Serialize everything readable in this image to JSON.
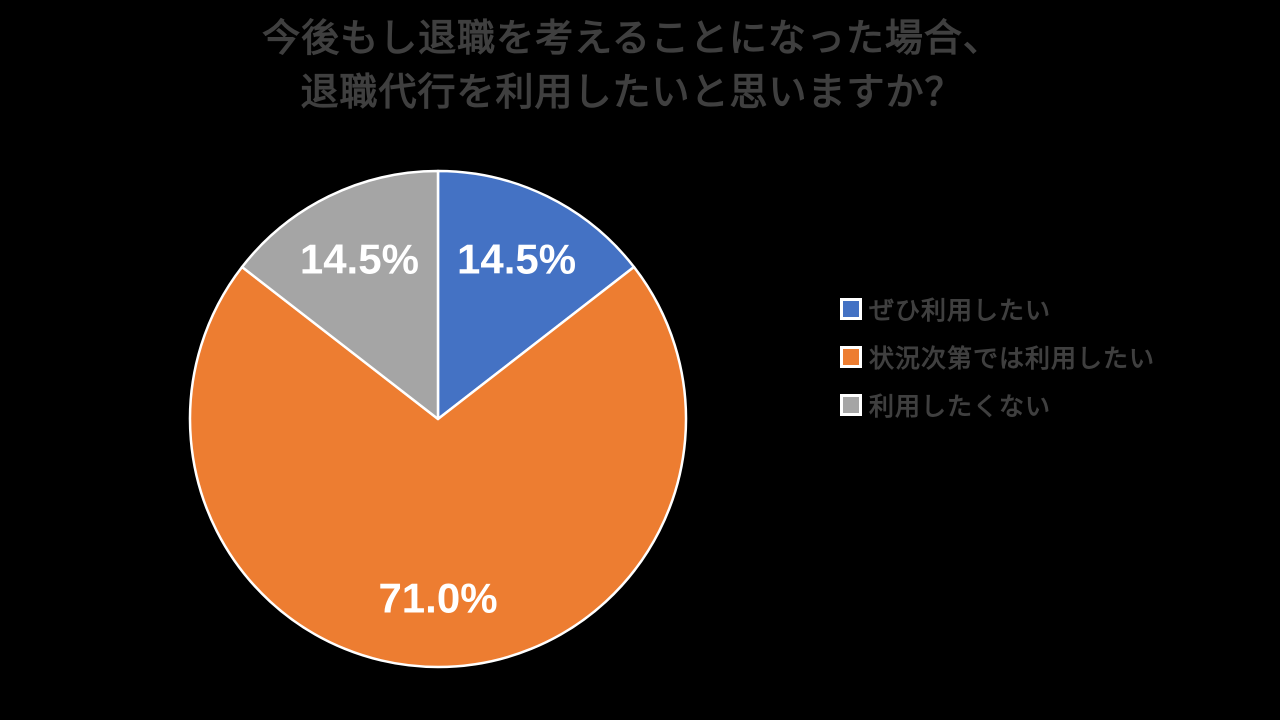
{
  "title": {
    "line1": "今後もし退職を考えることになった場合、",
    "line2": "退職代行を利用したいと思いますか？"
  },
  "chart_data": {
    "type": "pie",
    "title": "今後もし退職を考えることになった場合、退職代行を利用したいと思いますか？",
    "slices": [
      {
        "label": "ぜひ利用したい",
        "value": 14.5,
        "display": "14.5%",
        "color": "#4472C4"
      },
      {
        "label": "状況次第では利用したい",
        "value": 71.0,
        "display": "71.0%",
        "color": "#ED7D31"
      },
      {
        "label": "利用したくない",
        "value": 14.5,
        "display": "14.5%",
        "color": "#A5A5A5"
      }
    ],
    "start_angle_deg": 0,
    "direction": "clockwise",
    "data_labels": "inside",
    "legend_position": "right",
    "background_color": "#000000",
    "slice_border_color": "#FFFFFF",
    "title_color": "#3F3F3F",
    "legend_text_color": "#3F3F3F",
    "data_label_color": "#FFFFFF"
  }
}
